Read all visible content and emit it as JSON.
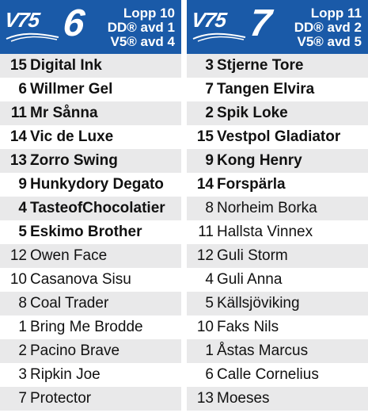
{
  "colors": {
    "header_bg": "#1a5aa8",
    "row_alt": "#e9e9ea"
  },
  "panels": [
    {
      "brand": "V75",
      "race_number": "6",
      "meta": [
        "Lopp 10",
        "DD® avd 1",
        "V5® avd 4"
      ],
      "horses": [
        {
          "num": "15",
          "name": "Digital Ink",
          "bold": true
        },
        {
          "num": "6",
          "name": "Willmer Gel",
          "bold": true
        },
        {
          "num": "11",
          "name": "Mr Sånna",
          "bold": true
        },
        {
          "num": "14",
          "name": "Vic de Luxe",
          "bold": true
        },
        {
          "num": "13",
          "name": "Zorro Swing",
          "bold": true
        },
        {
          "num": "9",
          "name": "Hunkydory Degato",
          "bold": true
        },
        {
          "num": "4",
          "name": "TasteofChocolatier",
          "bold": true
        },
        {
          "num": "5",
          "name": "Eskimo Brother",
          "bold": true
        },
        {
          "num": "12",
          "name": "Owen Face",
          "bold": false
        },
        {
          "num": "10",
          "name": "Casanova Sisu",
          "bold": false
        },
        {
          "num": "8",
          "name": "Coal Trader",
          "bold": false
        },
        {
          "num": "1",
          "name": "Bring Me Brodde",
          "bold": false
        },
        {
          "num": "2",
          "name": "Pacino Brave",
          "bold": false
        },
        {
          "num": "3",
          "name": "Ripkin Joe",
          "bold": false
        },
        {
          "num": "7",
          "name": "Protector",
          "bold": false
        }
      ]
    },
    {
      "brand": "V75",
      "race_number": "7",
      "meta": [
        "Lopp 11",
        "DD® avd 2",
        "V5® avd 5"
      ],
      "horses": [
        {
          "num": "3",
          "name": "Stjerne Tore",
          "bold": true
        },
        {
          "num": "7",
          "name": "Tangen Elvira",
          "bold": true
        },
        {
          "num": "2",
          "name": "Spik Loke",
          "bold": true
        },
        {
          "num": "15",
          "name": "Vestpol Gladiator",
          "bold": true
        },
        {
          "num": "9",
          "name": "Kong Henry",
          "bold": true
        },
        {
          "num": "14",
          "name": "Forspärla",
          "bold": true
        },
        {
          "num": "8",
          "name": "Norheim Borka",
          "bold": false
        },
        {
          "num": "11",
          "name": "Hallsta Vinnex",
          "bold": false
        },
        {
          "num": "12",
          "name": "Guli Storm",
          "bold": false
        },
        {
          "num": "4",
          "name": "Guli Anna",
          "bold": false
        },
        {
          "num": "5",
          "name": "Källsjöviking",
          "bold": false
        },
        {
          "num": "10",
          "name": "Faks Nils",
          "bold": false
        },
        {
          "num": "1",
          "name": "Åstas Marcus",
          "bold": false
        },
        {
          "num": "6",
          "name": "Calle Cornelius",
          "bold": false
        },
        {
          "num": "13",
          "name": "Moeses",
          "bold": false
        }
      ]
    }
  ]
}
